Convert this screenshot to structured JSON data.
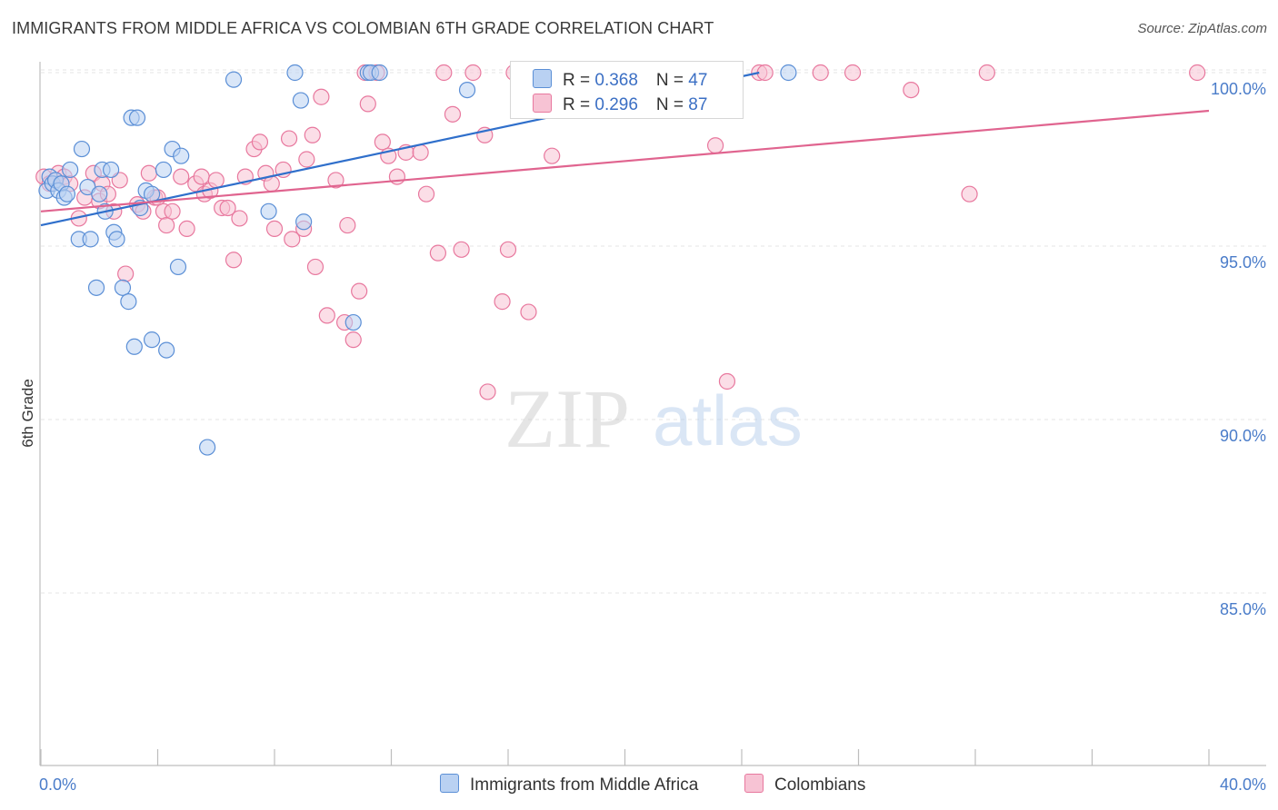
{
  "title": "IMMIGRANTS FROM MIDDLE AFRICA VS COLOMBIAN 6TH GRADE CORRELATION CHART",
  "source": "Source: ZipAtlas.com",
  "watermark": {
    "zip": "ZIP",
    "atlas": "atlas"
  },
  "legend": {
    "row1": {
      "r_label": "R = ",
      "r_value": "0.368",
      "n_label": "N = ",
      "n_value": "47"
    },
    "row2": {
      "r_label": "R = ",
      "r_value": "0.296",
      "n_label": "N = ",
      "n_value": "87"
    }
  },
  "bottom_legend": {
    "series1": "Immigrants from Middle Africa",
    "series2": "Colombians"
  },
  "colors": {
    "blue": "#5b8fd6",
    "blue_fill": "#b9d1f2",
    "pink": "#e8789e",
    "pink_fill": "#f7c3d4",
    "blue_line": "#2f6fcb",
    "pink_line": "#e0648f",
    "tick_text": "#4a7cc9"
  },
  "chart_data": {
    "type": "scatter",
    "title": "IMMIGRANTS FROM MIDDLE AFRICA VS COLOMBIAN 6TH GRADE CORRELATION CHART",
    "xlabel": "",
    "ylabel": "6th Grade",
    "xlim": [
      0,
      40
    ],
    "ylim": [
      80.6,
      100.6
    ],
    "x_tick_labels": {
      "left": "0.0%",
      "right": "40.0%"
    },
    "y_ticks": [
      {
        "value": 100,
        "label": "100.0%"
      },
      {
        "value": 95,
        "label": "95.0%"
      },
      {
        "value": 90,
        "label": "90.0%"
      },
      {
        "value": 85,
        "label": "85.0%"
      }
    ],
    "series": [
      {
        "name": "Immigrants from Middle Africa",
        "color": "blue",
        "trend": {
          "x1": 0,
          "y1": 95.6,
          "x2": 24.6,
          "y2": 100.0
        },
        "points": [
          [
            0.2,
            96.6
          ],
          [
            0.3,
            97.0
          ],
          [
            0.4,
            96.8
          ],
          [
            0.5,
            96.9
          ],
          [
            0.6,
            96.6
          ],
          [
            0.7,
            96.8
          ],
          [
            0.8,
            96.4
          ],
          [
            0.9,
            96.5
          ],
          [
            1.0,
            97.2
          ],
          [
            1.3,
            95.2
          ],
          [
            1.4,
            97.8
          ],
          [
            1.6,
            96.7
          ],
          [
            1.7,
            95.2
          ],
          [
            1.9,
            93.8
          ],
          [
            2.0,
            96.5
          ],
          [
            2.1,
            97.2
          ],
          [
            2.2,
            96.0
          ],
          [
            2.4,
            97.2
          ],
          [
            2.5,
            95.4
          ],
          [
            2.6,
            95.2
          ],
          [
            2.8,
            93.8
          ],
          [
            3.0,
            93.4
          ],
          [
            3.1,
            98.7
          ],
          [
            3.2,
            92.1
          ],
          [
            3.3,
            98.7
          ],
          [
            3.4,
            96.1
          ],
          [
            3.6,
            96.6
          ],
          [
            3.8,
            96.5
          ],
          [
            3.8,
            92.3
          ],
          [
            4.2,
            97.2
          ],
          [
            4.3,
            92.0
          ],
          [
            4.5,
            97.8
          ],
          [
            4.7,
            94.4
          ],
          [
            4.8,
            97.6
          ],
          [
            5.7,
            89.2
          ],
          [
            6.6,
            99.8
          ],
          [
            7.8,
            96.0
          ],
          [
            8.7,
            100.0
          ],
          [
            8.9,
            99.2
          ],
          [
            9.0,
            95.7
          ],
          [
            10.7,
            92.8
          ],
          [
            11.2,
            100.0
          ],
          [
            11.3,
            100.0
          ],
          [
            11.6,
            100.0
          ],
          [
            14.6,
            99.5
          ],
          [
            17.5,
            100.0
          ],
          [
            25.6,
            100.0
          ]
        ]
      },
      {
        "name": "Colombians",
        "color": "pink",
        "trend": {
          "x1": 0,
          "y1": 96.0,
          "x2": 40,
          "y2": 98.9
        },
        "points": [
          [
            0.1,
            97.0
          ],
          [
            0.3,
            96.8
          ],
          [
            0.5,
            96.9
          ],
          [
            0.6,
            97.1
          ],
          [
            0.8,
            97.0
          ],
          [
            1.0,
            96.8
          ],
          [
            1.3,
            95.8
          ],
          [
            1.5,
            96.4
          ],
          [
            1.8,
            97.1
          ],
          [
            2.0,
            96.3
          ],
          [
            2.1,
            96.8
          ],
          [
            2.3,
            96.5
          ],
          [
            2.5,
            96.0
          ],
          [
            2.7,
            96.9
          ],
          [
            2.9,
            94.2
          ],
          [
            3.3,
            96.2
          ],
          [
            3.5,
            96.0
          ],
          [
            3.7,
            97.1
          ],
          [
            3.9,
            96.4
          ],
          [
            4.0,
            96.4
          ],
          [
            4.2,
            96.0
          ],
          [
            4.3,
            95.6
          ],
          [
            4.5,
            96.0
          ],
          [
            4.8,
            97.0
          ],
          [
            5.0,
            95.5
          ],
          [
            5.3,
            96.8
          ],
          [
            5.5,
            97.0
          ],
          [
            5.6,
            96.5
          ],
          [
            5.8,
            96.6
          ],
          [
            6.0,
            96.9
          ],
          [
            6.2,
            96.1
          ],
          [
            6.4,
            96.1
          ],
          [
            6.6,
            94.6
          ],
          [
            6.8,
            95.8
          ],
          [
            7.0,
            97.0
          ],
          [
            7.3,
            97.8
          ],
          [
            7.5,
            98.0
          ],
          [
            7.7,
            97.1
          ],
          [
            7.9,
            96.8
          ],
          [
            8.0,
            95.5
          ],
          [
            8.3,
            97.2
          ],
          [
            8.5,
            98.1
          ],
          [
            8.6,
            95.2
          ],
          [
            9.0,
            95.5
          ],
          [
            9.1,
            97.5
          ],
          [
            9.3,
            98.2
          ],
          [
            9.4,
            94.4
          ],
          [
            9.6,
            99.3
          ],
          [
            9.8,
            93.0
          ],
          [
            10.1,
            96.9
          ],
          [
            10.4,
            92.8
          ],
          [
            10.5,
            95.6
          ],
          [
            10.7,
            92.3
          ],
          [
            10.9,
            93.7
          ],
          [
            11.1,
            100.0
          ],
          [
            11.2,
            99.1
          ],
          [
            11.5,
            100.0
          ],
          [
            11.7,
            98.0
          ],
          [
            11.9,
            97.6
          ],
          [
            12.2,
            97.0
          ],
          [
            12.5,
            97.7
          ],
          [
            13.0,
            97.7
          ],
          [
            13.2,
            96.5
          ],
          [
            13.6,
            94.8
          ],
          [
            13.8,
            100.0
          ],
          [
            14.1,
            98.8
          ],
          [
            14.4,
            94.9
          ],
          [
            14.8,
            100.0
          ],
          [
            15.2,
            98.2
          ],
          [
            15.3,
            90.8
          ],
          [
            15.8,
            93.4
          ],
          [
            16.0,
            94.9
          ],
          [
            16.2,
            100.0
          ],
          [
            16.7,
            93.1
          ],
          [
            17.5,
            97.6
          ],
          [
            17.9,
            100.0
          ],
          [
            19.4,
            100.0
          ],
          [
            23.1,
            97.9
          ],
          [
            23.5,
            91.1
          ],
          [
            24.6,
            100.0
          ],
          [
            24.8,
            100.0
          ],
          [
            26.7,
            100.0
          ],
          [
            27.8,
            100.0
          ],
          [
            29.8,
            99.5
          ],
          [
            31.8,
            96.5
          ],
          [
            32.4,
            100.0
          ],
          [
            39.6,
            100.0
          ]
        ]
      }
    ]
  }
}
